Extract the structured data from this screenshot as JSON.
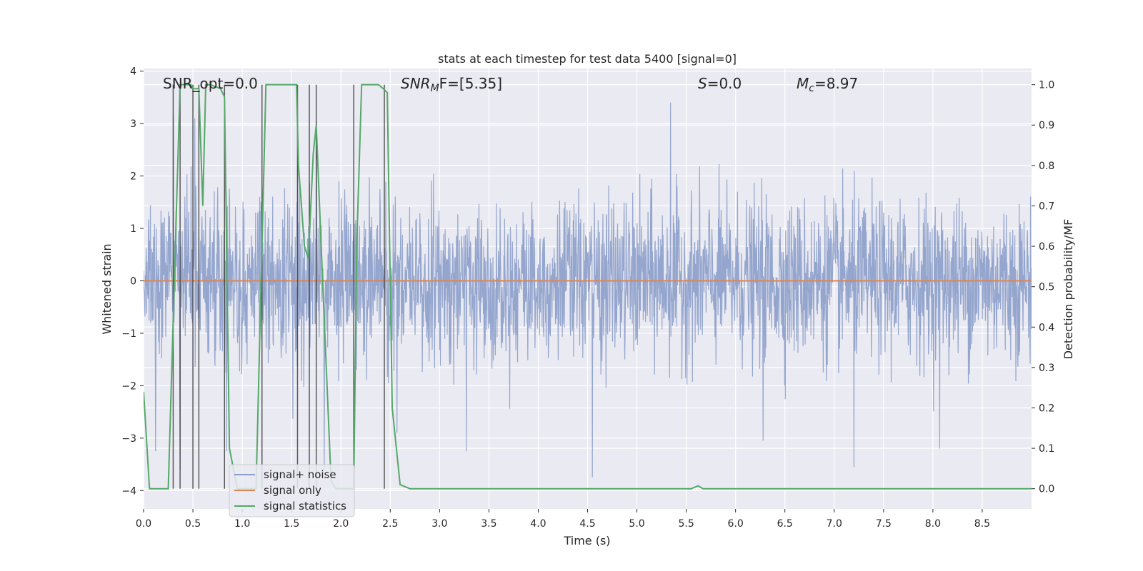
{
  "chart_data": {
    "type": "line",
    "title": "stats at each timestep for test data 5400 [signal=0]",
    "xlabel": "Time (s)",
    "ylabel": "Whitened strain",
    "ylabel_right": "Detection probability/MF",
    "xlim": [
      0.0,
      9.0
    ],
    "ylim": [
      -4.35,
      4.05
    ],
    "ylim_right": [
      -0.05,
      1.04
    ],
    "x_ticks": [
      0.0,
      0.5,
      1.0,
      1.5,
      2.0,
      2.5,
      3.0,
      3.5,
      4.0,
      4.5,
      5.0,
      5.5,
      6.0,
      6.5,
      7.0,
      7.5,
      8.0,
      8.5
    ],
    "x_tick_labels": [
      "0.0",
      "0.5",
      "1.0",
      "1.5",
      "2.0",
      "2.5",
      "3.0",
      "3.5",
      "4.0",
      "4.5",
      "5.0",
      "5.5",
      "6.0",
      "6.5",
      "7.0",
      "7.5",
      "8.0",
      "8.5"
    ],
    "y_ticks": [
      4,
      3,
      2,
      1,
      0,
      -1,
      -2,
      -3,
      -4
    ],
    "y_tick_labels": [
      "4",
      "3",
      "2",
      "1",
      "0",
      "−1",
      "−2",
      "−3",
      "−4"
    ],
    "y_right_ticks": [
      1.0,
      0.9,
      0.8,
      0.7,
      0.6,
      0.5,
      0.4,
      0.3,
      0.2,
      0.1,
      0.0
    ],
    "y_right_tick_labels": [
      "1.0",
      "0.9",
      "0.8",
      "0.7",
      "0.6",
      "0.5",
      "0.4",
      "0.3",
      "0.2",
      "0.1",
      "0.0"
    ],
    "annotations": {
      "snr_opt": "SNR_opt=0.0",
      "snr_mf_base": "SNR",
      "snr_mf_sub": "M",
      "snr_mf_rest": "F=[5.35]",
      "s_label": "S",
      "s_rest": "=0.0",
      "mc_base": "M",
      "mc_sub": "c",
      "mc_rest": "=8.97"
    },
    "legend": {
      "placement": "lower-left",
      "entries": [
        "signal+ noise",
        "signal only",
        "signal statistics"
      ]
    },
    "colors": {
      "signal_noise": "#8c9fca",
      "signal_only": "#dd8452",
      "signal_statistics": "#55a868",
      "vlines": "#404040",
      "background": "#eaeaf2",
      "grid": "#ffffff"
    },
    "series": [
      {
        "name": "signal+ noise",
        "axis": "left",
        "description": "whitened strain noise, approx. spread from -4 to 3.4 around 0",
        "amplitude_std": 0.75,
        "spikes": [
          [
            0.37,
            -3.6
          ],
          [
            0.3,
            3.2
          ],
          [
            0.12,
            -3.25
          ],
          [
            0.52,
            3.1
          ],
          [
            0.84,
            -3.25
          ],
          [
            1.56,
            3.35
          ],
          [
            1.75,
            3.05
          ],
          [
            1.83,
            -3.6
          ],
          [
            2.57,
            -2.9
          ],
          [
            3.27,
            -3.25
          ],
          [
            4.55,
            -3.75
          ],
          [
            5.34,
            3.4
          ],
          [
            6.28,
            -3.05
          ],
          [
            7.2,
            -3.55
          ],
          [
            8.07,
            -3.2
          ]
        ]
      },
      {
        "name": "signal only",
        "axis": "left",
        "x": [
          0.0,
          9.0
        ],
        "values": [
          0.0,
          0.0
        ]
      },
      {
        "name": "signal statistics",
        "axis": "right",
        "x": [
          0.0,
          0.06,
          0.25,
          0.37,
          0.48,
          0.5,
          0.52,
          0.56,
          0.6,
          0.63,
          0.68,
          0.78,
          0.82,
          0.87,
          0.95,
          0.99,
          1.03,
          1.1,
          1.14,
          1.2,
          1.24,
          1.3,
          1.55,
          1.57,
          1.63,
          1.67,
          1.72,
          1.75,
          1.8,
          1.9,
          1.95,
          2.06,
          2.13,
          2.16,
          2.21,
          2.38,
          2.43,
          2.47,
          2.52,
          2.6,
          2.7,
          5.55,
          5.62,
          5.67,
          5.72,
          9.0
        ],
        "values": [
          0.24,
          0.0,
          0.0,
          1.0,
          1.0,
          0.99,
          0.99,
          0.99,
          0.7,
          1.0,
          1.0,
          0.99,
          0.97,
          0.1,
          0.0,
          0.0,
          0.0,
          0.0,
          0.0,
          0.6,
          1.0,
          1.0,
          1.0,
          0.8,
          0.6,
          0.57,
          0.83,
          0.9,
          0.6,
          0.02,
          0.0,
          0.0,
          0.0,
          0.6,
          1.0,
          1.0,
          0.99,
          0.98,
          0.2,
          0.01,
          0.0,
          0.0,
          0.007,
          0.0,
          0.0,
          0.0
        ]
      }
    ],
    "vlines": [
      0.3,
      0.37,
      0.5,
      0.56,
      0.82,
      1.2,
      1.56,
      1.68,
      1.75,
      2.13,
      2.44
    ]
  }
}
